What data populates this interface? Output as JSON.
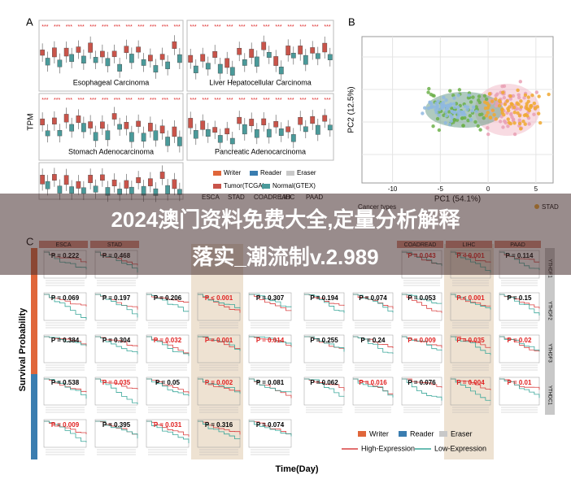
{
  "panels": {
    "a": "A",
    "b": "B",
    "c": "C"
  },
  "panel_a": {
    "y_label": "TPM",
    "significance": "***",
    "subtitles": [
      "Esophageal Carcinoma",
      "Liver Hepatocellular Carcinoma",
      "Stomach Adenocarcinoma",
      "Pancreatic Adenocarcinoma"
    ],
    "legend_groups": [
      "Writer",
      "Reader",
      "Eraser"
    ],
    "legend_sources": [
      "Tumor(TCGA)",
      "Normal(GTEX)"
    ],
    "cancer_types": [
      "ESCA",
      "STAD",
      "COADREAD",
      "LIHC",
      "PAAD"
    ]
  },
  "panel_b": {
    "x_label": "PC1 (54.1%)",
    "y_label": "PC2 (12.5%)",
    "xticks": [
      -10,
      -5,
      0,
      5
    ],
    "xlim": [
      -13.2,
      6.8
    ],
    "legend_title": "Cancer types",
    "legend_item": "STAD"
  },
  "panel_c": {
    "y_label": "Survival Probability",
    "x_label": "Time(Day)",
    "headers": [
      "ESCA",
      "STAD",
      null,
      null,
      null,
      null,
      null,
      "COADREAD",
      "LIHC",
      "PAAD"
    ],
    "row_labels": [
      "YTHDF1",
      "YTHDF2",
      "YTHDF3",
      "YTHDC1"
    ],
    "rows": [
      [
        "P = 0.222",
        "P = 0.468",
        null,
        null,
        null,
        null,
        null,
        "P = 0.043",
        "P < 0.001",
        "P = 0.114"
      ],
      [
        "P = 0.069",
        "P = 0.197",
        "P = 0.206",
        "P < 0.001",
        "P = 0.307",
        "P = 0.194",
        "P = 0.074",
        "P = 0.053",
        "P < 0.001",
        "P = 0.15"
      ],
      [
        "P = 0.384",
        "P = 0.304",
        "P = 0.032",
        "P = 0.001",
        "P = 0.014",
        "P = 0.255",
        "P = 0.24",
        "P = 0.009",
        "P = 0.035",
        "P = 0.02"
      ],
      [
        "P = 0.538",
        "P = 0.035",
        "P = 0.05",
        "P = 0.002",
        "P = 0.081",
        "P = 0.062",
        "P = 0.016",
        "P = 0.076",
        "P = 0.004",
        "P = 0.01"
      ],
      [
        "P = 0.009",
        "P = 0.395",
        "P = 0.031",
        "P = 0.316",
        "P = 0.074",
        null,
        null,
        null,
        null,
        null
      ]
    ],
    "legend_groups": [
      "Writer",
      "Reader",
      "Eraser"
    ],
    "legend_lines": [
      "High-Expression",
      "Low-Expression"
    ]
  },
  "banner": {
    "line1": "2024澳门资料免费大全,定量分析解释",
    "line2": "落实_潮流制v.2.989"
  }
}
